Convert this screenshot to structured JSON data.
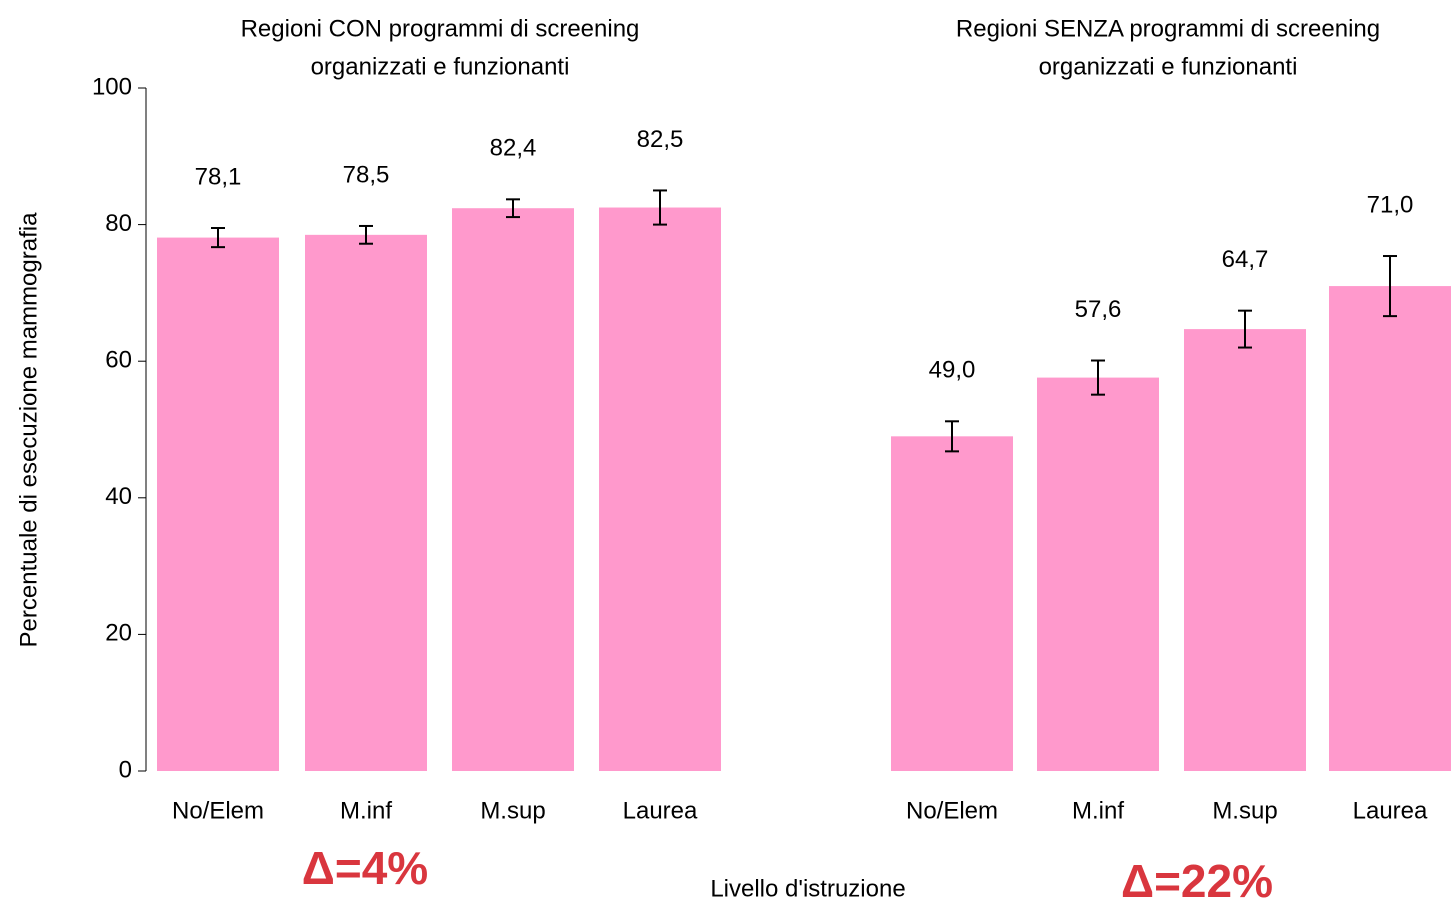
{
  "chart_data": [
    {
      "type": "bar",
      "title": [
        "Regioni CON programmi di screening",
        "organizzati e funzionanti"
      ],
      "categories": [
        "No/Elem",
        "M.inf",
        "M.sup",
        "Laurea"
      ],
      "values": [
        78.1,
        78.5,
        82.4,
        82.5
      ],
      "value_labels": [
        "78,1",
        "78,5",
        "82,4",
        "82,5"
      ],
      "errors": [
        1.4,
        1.3,
        1.3,
        2.5
      ],
      "color": "#ff99cc",
      "ylim": [
        0,
        100
      ],
      "yticks": [
        0,
        20,
        40,
        60,
        80,
        100
      ],
      "ylabel": "Percentuale di esecuzione mammografia",
      "xlabel": "Livello d'istruzione",
      "annotation": "Δ=4%",
      "annotation_color": "#d9363e"
    },
    {
      "type": "bar",
      "title": [
        "Regioni SENZA programmi di screening",
        "organizzati e funzionanti"
      ],
      "categories": [
        "No/Elem",
        "M.inf",
        "M.sup",
        "Laurea"
      ],
      "values": [
        49.0,
        57.6,
        64.7,
        71.0
      ],
      "value_labels": [
        "49,0",
        "57,6",
        "64,7",
        "71,0"
      ],
      "errors": [
        2.2,
        2.5,
        2.7,
        4.4
      ],
      "color": "#ff99cc",
      "annotation": "Δ=22%",
      "annotation_color": "#d9363e"
    }
  ]
}
